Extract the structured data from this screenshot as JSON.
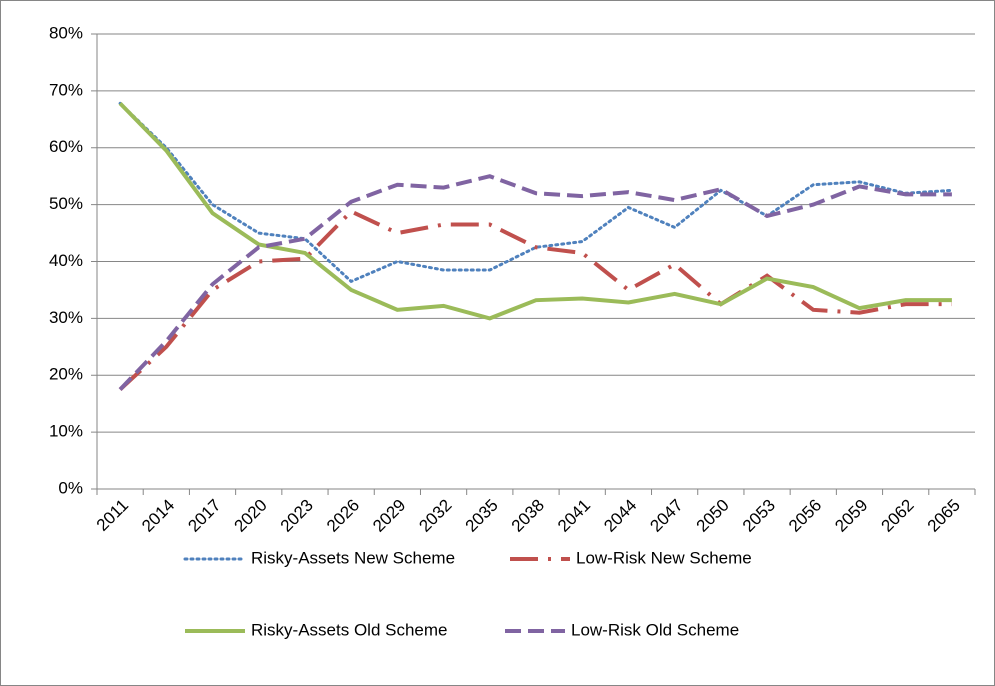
{
  "chart_data": {
    "type": "line",
    "categories": [
      "2011",
      "2014",
      "2017",
      "2020",
      "2023",
      "2026",
      "2029",
      "2032",
      "2035",
      "2038",
      "2041",
      "2044",
      "2047",
      "2050",
      "2053",
      "2056",
      "2059",
      "2062",
      "2065"
    ],
    "ylim": [
      0,
      80
    ],
    "yticks": [
      {
        "value": 0,
        "label": "0%"
      },
      {
        "value": 10,
        "label": "10%"
      },
      {
        "value": 20,
        "label": "20%"
      },
      {
        "value": 30,
        "label": "30%"
      },
      {
        "value": 40,
        "label": "40%"
      },
      {
        "value": 50,
        "label": "50%"
      },
      {
        "value": 60,
        "label": "60%"
      },
      {
        "value": 70,
        "label": "70%"
      },
      {
        "value": 80,
        "label": "80%"
      }
    ],
    "grid": true,
    "legend": "bottom",
    "series": [
      {
        "name": "Risky-Assets New Scheme",
        "color": "#4f81bd",
        "values": [
          67.8,
          60,
          50,
          45,
          44,
          36.5,
          40,
          38.5,
          38.5,
          42.5,
          43.5,
          49.5,
          46,
          52.5,
          48,
          53.5,
          54,
          52,
          52.5
        ]
      },
      {
        "name": "Low-Risk New Scheme",
        "color": "#c0504d",
        "values": [
          17.5,
          25,
          35,
          40,
          40.5,
          48.8,
          45,
          46.5,
          46.5,
          42.5,
          41.5,
          35,
          39.5,
          32.5,
          37.5,
          31.5,
          31,
          32.5,
          32.5
        ]
      },
      {
        "name": "Risky-Assets Old Scheme",
        "color": "#9bbb59",
        "values": [
          67.8,
          59.5,
          48.5,
          43,
          41.5,
          35,
          31.5,
          32.2,
          30,
          33.2,
          33.5,
          32.8,
          34.3,
          32.5,
          37,
          35.5,
          31.8,
          33.2,
          33.2
        ]
      },
      {
        "name": "Low-Risk Old Scheme",
        "color": "#8064a2",
        "values": [
          17.5,
          26,
          36,
          42.5,
          44,
          50.5,
          53.5,
          53,
          55,
          52,
          51.5,
          52.2,
          50.8,
          52.7,
          48,
          50,
          53.2,
          51.8,
          51.8
        ]
      }
    ]
  }
}
